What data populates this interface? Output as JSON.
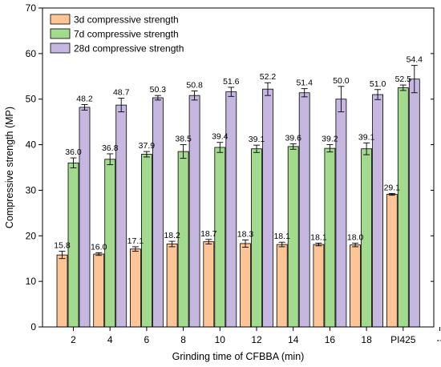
{
  "chart_data": {
    "type": "bar",
    "xlabel": "Grinding time of CFBBA (min)",
    "ylabel": "Compressive strength (MP)",
    "ylim": [
      0,
      70
    ],
    "yticks": [
      0,
      10,
      20,
      30,
      40,
      50,
      60,
      70
    ],
    "categories": [
      "2",
      "4",
      "6",
      "8",
      "10",
      "12",
      "14",
      "16",
      "18",
      "PI425"
    ],
    "extra_x_tick": "--",
    "legend_position": "top-left",
    "grid": false,
    "series": [
      {
        "name": "3d compressive strength",
        "color": "#FDC596",
        "values": [
          15.8,
          16.0,
          17.1,
          18.2,
          18.7,
          18.3,
          18.1,
          18.1,
          18.0,
          29.1
        ],
        "labels": [
          "15.8",
          "16.0",
          "17.1",
          "18.2",
          "18.7",
          "18.3",
          "18.1",
          "18.1",
          "18.0",
          "29.1"
        ],
        "errors": [
          0.8,
          0.3,
          0.5,
          0.6,
          0.5,
          0.8,
          0.5,
          0.3,
          0.4,
          0.2
        ]
      },
      {
        "name": "7d compressive strength",
        "color": "#A2DA8E",
        "values": [
          36.0,
          36.8,
          37.9,
          38.5,
          39.4,
          39.1,
          39.6,
          39.2,
          39.1,
          52.5
        ],
        "labels": [
          "36.0",
          "36.8",
          "37.9",
          "38.5",
          "39.4",
          "39.1",
          "39.6",
          "39.2",
          "39.1",
          "52.5"
        ],
        "errors": [
          1.1,
          1.2,
          0.6,
          1.5,
          1.1,
          0.8,
          0.6,
          0.8,
          1.3,
          0.6
        ]
      },
      {
        "name": "28d compressive strength",
        "color": "#C6B7E1",
        "values": [
          48.2,
          48.7,
          50.3,
          50.8,
          51.6,
          52.2,
          51.4,
          50.0,
          51.0,
          54.4
        ],
        "labels": [
          "48.2",
          "48.7",
          "50.3",
          "50.8",
          "51.6",
          "52.2",
          "51.4",
          "50.0",
          "51.0",
          "54.4"
        ],
        "errors": [
          0.6,
          1.5,
          0.5,
          1.0,
          1.0,
          1.4,
          0.9,
          2.8,
          1.1,
          3.0
        ]
      }
    ]
  }
}
